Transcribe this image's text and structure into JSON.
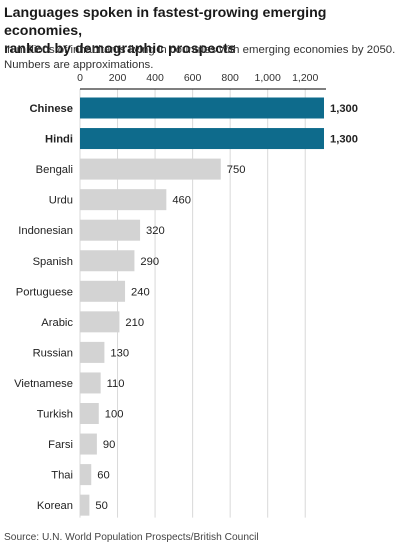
{
  "header": {
    "title_line1": "Languages spoken in fastest-growing emerging economies,",
    "title_line2": "ranked by demographic prospects",
    "subtitle_line1": "In millions of inhabitants living in countries with emerging economies by 2050.",
    "subtitle_line2": "Numbers are approximations."
  },
  "footer": {
    "source": "Source: U.N. World Population Prospects/British Council"
  },
  "chart_data": {
    "type": "bar",
    "orientation": "horizontal",
    "categories": [
      "Chinese",
      "Hindi",
      "Bengali",
      "Urdu",
      "Indonesian",
      "Spanish",
      "Portuguese",
      "Arabic",
      "Russian",
      "Vietnamese",
      "Turkish",
      "Farsi",
      "Thai",
      "Korean"
    ],
    "values": [
      1300,
      1300,
      750,
      460,
      320,
      290,
      240,
      210,
      130,
      110,
      100,
      90,
      60,
      50
    ],
    "value_labels": [
      "1,300",
      "1,300",
      "750",
      "460",
      "320",
      "290",
      "240",
      "210",
      "130",
      "110",
      "100",
      "90",
      "60",
      "50"
    ],
    "highlighted": [
      "Chinese",
      "Hindi"
    ],
    "xticks": [
      0,
      200,
      400,
      600,
      800,
      1000,
      1200
    ],
    "xtick_labels": [
      "0",
      "200",
      "400",
      "600",
      "800",
      "1,000",
      "1,200"
    ],
    "xlim": [
      0,
      1300
    ],
    "grid": true,
    "axis_position": "top",
    "colors": {
      "highlight": "#0e6b8c",
      "default": "#d3d3d3",
      "grid": "#d9d9d9",
      "axis": "#333333"
    }
  }
}
